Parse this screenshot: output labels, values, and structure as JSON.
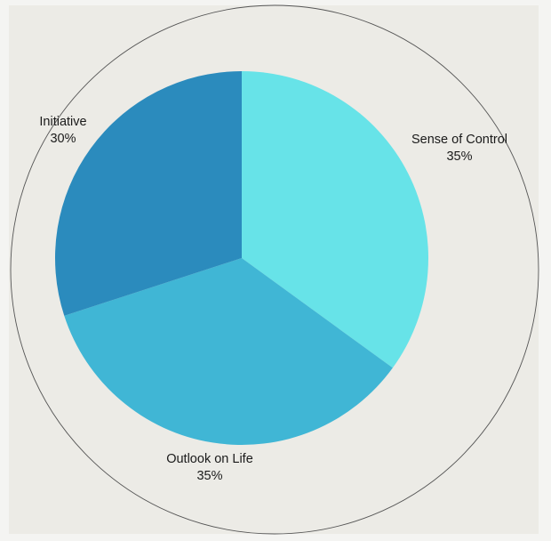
{
  "chart_data": {
    "type": "pie",
    "title": "",
    "slices": [
      {
        "label": "Sense of Control",
        "value": 35,
        "value_label": "35%",
        "color": "#67e3e8"
      },
      {
        "label": "Outlook on Life",
        "value": 35,
        "value_label": "35%",
        "color": "#40b6d5"
      },
      {
        "label": "Initiative",
        "value": 30,
        "value_label": "30%",
        "color": "#2b8bbd"
      }
    ],
    "start_angle": "12 o'clock",
    "direction": "clockwise",
    "legend": "none",
    "outer_ring": true
  },
  "colors": {
    "background": "#ecebe6",
    "ring": "#555555"
  }
}
